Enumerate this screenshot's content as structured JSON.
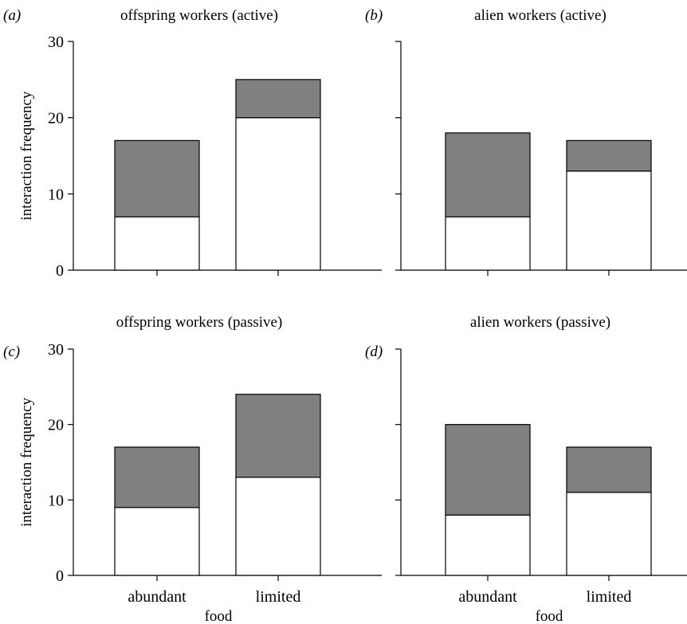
{
  "chart_data": [
    {
      "type": "bar",
      "panel_label": "(a)",
      "title": "offspring workers (active)",
      "categories": [
        "abundant",
        "limited"
      ],
      "series": [
        {
          "values": [
            7,
            20
          ]
        },
        {
          "values": [
            10,
            5
          ]
        }
      ],
      "ylim": [
        0,
        30
      ],
      "yticks": [
        "0",
        "10",
        "20",
        "30"
      ],
      "ylabel": "interaction frequency",
      "xlabel": "",
      "show_category_labels": false
    },
    {
      "type": "bar",
      "panel_label": "(b)",
      "title": "alien workers (active)",
      "categories": [
        "abundant",
        "limited"
      ],
      "series": [
        {
          "values": [
            7,
            13
          ]
        },
        {
          "values": [
            11,
            4
          ]
        }
      ],
      "ylim": [
        0,
        30
      ],
      "yticks": [],
      "ylabel": "",
      "xlabel": "",
      "show_category_labels": false
    },
    {
      "type": "bar",
      "panel_label": "(c)",
      "title": "offspring workers (passive)",
      "categories": [
        "abundant",
        "limited"
      ],
      "series": [
        {
          "values": [
            9,
            13
          ]
        },
        {
          "values": [
            8,
            11
          ]
        }
      ],
      "ylim": [
        0,
        30
      ],
      "yticks": [
        "0",
        "10",
        "20",
        "30"
      ],
      "ylabel": "interaction frequency",
      "xlabel": "food",
      "show_category_labels": true
    },
    {
      "type": "bar",
      "panel_label": "(d)",
      "title": "alien workers (passive)",
      "categories": [
        "abundant",
        "limited"
      ],
      "series": [
        {
          "values": [
            8,
            11
          ]
        },
        {
          "values": [
            12,
            6
          ]
        }
      ],
      "ylim": [
        0,
        30
      ],
      "yticks": [],
      "ylabel": "",
      "xlabel": "food",
      "show_category_labels": true
    }
  ],
  "colors": {
    "lower": "#ffffff",
    "upper": "#808080",
    "stroke": "#000000"
  }
}
